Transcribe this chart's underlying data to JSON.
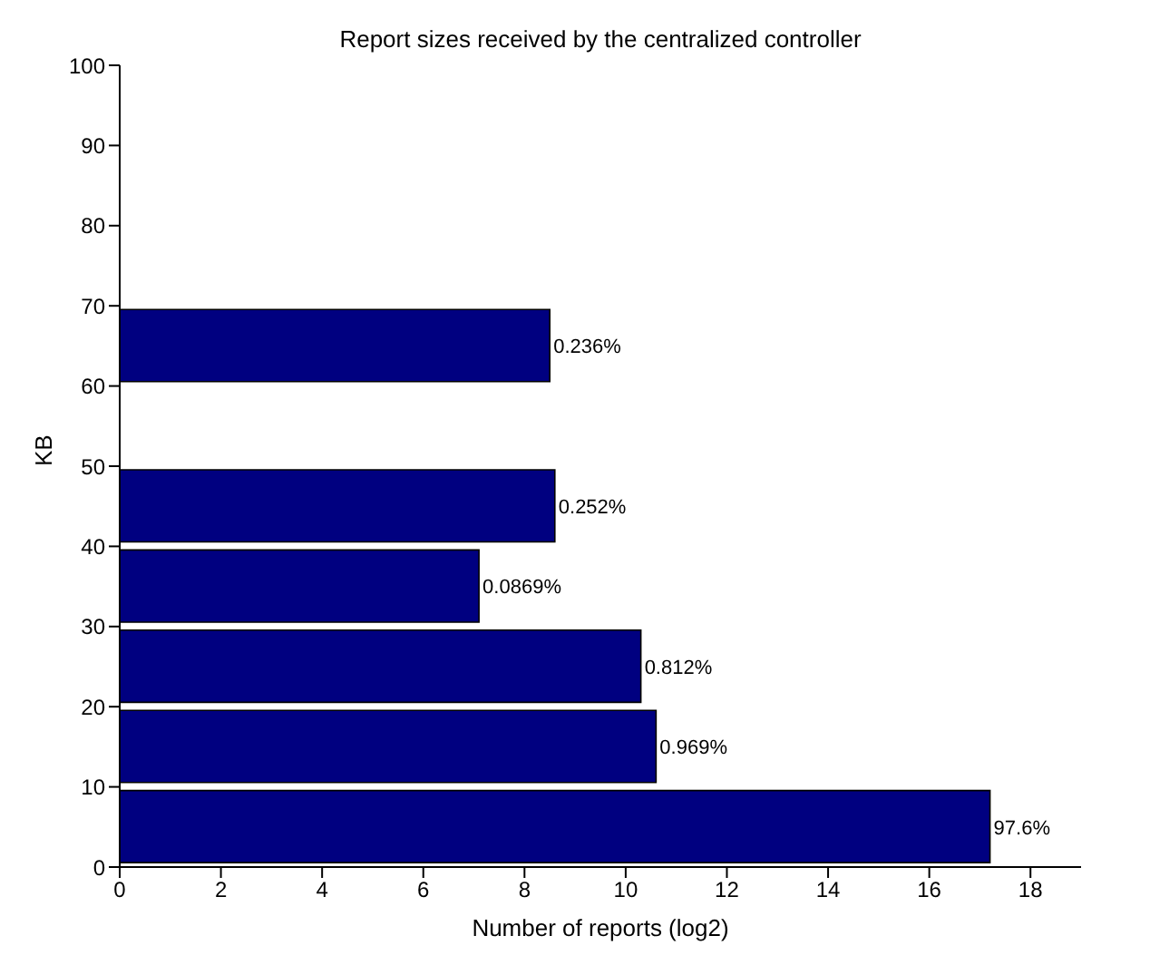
{
  "chart_data": {
    "type": "histogram",
    "orientation": "horizontal",
    "title": "Report sizes received by the centralized controller",
    "xlabel": "Number of reports (log2)",
    "ylabel": "KB",
    "bins": [
      0,
      10,
      20,
      30,
      40,
      50,
      60,
      70
    ],
    "values": [
      17.2,
      10.6,
      10.3,
      7.1,
      8.6,
      null,
      8.5
    ],
    "annotations": [
      {
        "text": "97.6%",
        "x": 17.2,
        "y": 5
      },
      {
        "text": "0.969%",
        "x": 10.6,
        "y": 15
      },
      {
        "text": "0.812%",
        "x": 10.3,
        "y": 25
      },
      {
        "text": "0.0869%",
        "x": 7.1,
        "y": 35
      },
      {
        "text": "0.252%",
        "x": 8.6,
        "y": 45
      },
      {
        "text": "0.236%",
        "x": 8.5,
        "y": 65
      }
    ],
    "color": "#000080",
    "xlim": [
      0,
      19
    ],
    "xticks": [
      0,
      2,
      4,
      6,
      8,
      10,
      12,
      14,
      16,
      18
    ],
    "ylim": [
      0,
      100
    ],
    "yticks": [
      0,
      10,
      20,
      30,
      40,
      50,
      60,
      70,
      80,
      90,
      100
    ]
  }
}
